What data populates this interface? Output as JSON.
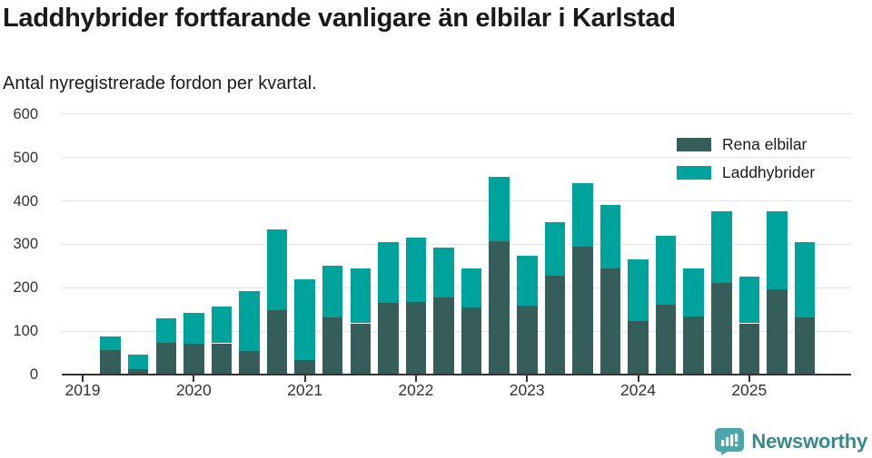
{
  "page": {
    "title": "Laddhybrider fortfarande vanligare än elbilar i Karlstad",
    "subtitle": "Antal nyregistrerade fordon per kvartal.",
    "footer_brand": "Newsworthy"
  },
  "colors": {
    "electric": "#355e5a",
    "hybrid": "#00a39b",
    "axis": "#333333",
    "grid": "#e4e4e4",
    "title_text": "#1a1a1a",
    "brand_logo": "#4ba6ab",
    "brand_text": "#38898e"
  },
  "chart_data": {
    "type": "bar",
    "stacked": true,
    "title": "Laddhybrider fortfarande vanligare än elbilar i Karlstad",
    "subtitle": "Antal nyregistrerade fordon per kvartal.",
    "categories": [
      "2019 Q1",
      "2019 Q2",
      "2019 Q3",
      "2019 Q4",
      "2020 Q1",
      "2020 Q2",
      "2020 Q3",
      "2020 Q4",
      "2021 Q1",
      "2021 Q2",
      "2021 Q3",
      "2021 Q4",
      "2022 Q1",
      "2022 Q2",
      "2022 Q3",
      "2022 Q4",
      "2023 Q1",
      "2023 Q2",
      "2023 Q3",
      "2023 Q4",
      "2024 Q1",
      "2024 Q2",
      "2024 Q3",
      "2024 Q4",
      "2025 Q1",
      "2025 Q2",
      "2025 Q3"
    ],
    "series": [
      {
        "name": "Rena elbilar",
        "color": "#355e5a",
        "values": [
          0,
          56,
          12,
          73,
          71,
          72,
          54,
          148,
          33,
          132,
          118,
          165,
          168,
          178,
          154,
          307,
          158,
          228,
          294,
          244,
          123,
          160,
          133,
          210,
          118,
          197,
          131
        ]
      },
      {
        "name": "Laddhybrider",
        "color": "#00a39b",
        "values": [
          0,
          32,
          35,
          57,
          72,
          85,
          138,
          187,
          187,
          118,
          127,
          140,
          147,
          115,
          91,
          148,
          115,
          124,
          146,
          146,
          142,
          160,
          112,
          165,
          107,
          178,
          174
        ]
      }
    ],
    "x_tick_labels": [
      "2019",
      "2020",
      "2021",
      "2022",
      "2023",
      "2024",
      "2025"
    ],
    "x_tick_every_n": 4,
    "y_ticks": [
      0,
      100,
      200,
      300,
      400,
      500,
      600
    ],
    "ylim": [
      0,
      600
    ],
    "grid": true,
    "legend_position": "top-right"
  }
}
